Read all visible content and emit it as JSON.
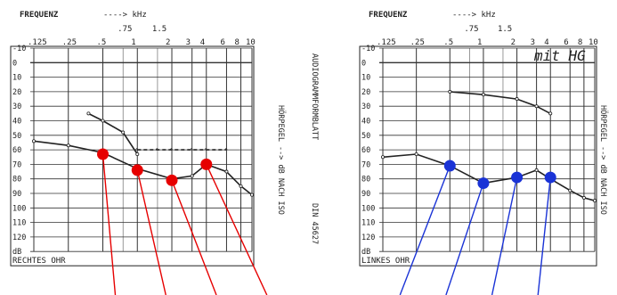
{
  "chart_data": [
    {
      "type": "line",
      "header": "FREQUENZ",
      "unit_arrow": "----> kHz",
      "x_ticks": [
        ".125",
        ".25",
        ".5",
        "1",
        "2",
        "3",
        "4",
        "6",
        "8",
        "10"
      ],
      "x_ticks_upper": [
        ".75",
        "1.5"
      ],
      "y_ticks": [
        "-10",
        "0",
        "10",
        "20",
        "30",
        "40",
        "50",
        "60",
        "70",
        "80",
        "90",
        "100",
        "110",
        "120",
        "dB"
      ],
      "ylim": [
        -10,
        120
      ],
      "ear_label": "RECHTES OHR",
      "right_side_text": [
        "AUDIOGRAMMFORMBLATT",
        "DIN 45627"
      ],
      "series": [
        {
          "x": [
            0.125,
            0.25,
            0.5,
            1,
            2,
            3,
            4,
            6,
            8,
            10
          ],
          "values": [
            54,
            57,
            62,
            73,
            80,
            78,
            70,
            75,
            85,
            91
          ]
        },
        {
          "x": [
            0.375,
            0.5,
            0.75,
            1
          ],
          "values": [
            35,
            40,
            48,
            63
          ]
        },
        {
          "x": [
            1,
            1.5,
            2,
            3,
            4,
            6
          ],
          "values": [
            60,
            60,
            60,
            60,
            60,
            60
          ]
        },
        {
          "x": [
            0.5,
            1,
            2,
            4
          ],
          "values": [
            63,
            74,
            81,
            70
          ]
        }
      ],
      "marker_color": "#e60000",
      "handwriting": "",
      "grid": true
    },
    {
      "type": "line",
      "header": "FREQUENZ",
      "unit_arrow": "----> kHz",
      "x_ticks": [
        ".125",
        ".25",
        ".5",
        "1",
        "2",
        "3",
        "4",
        "6",
        "8",
        "10"
      ],
      "x_ticks_upper": [
        ".75",
        "1.5"
      ],
      "y_ticks": [
        "-10",
        "0",
        "10",
        "20",
        "30",
        "40",
        "50",
        "60",
        "70",
        "80",
        "90",
        "100",
        "110",
        "120",
        "dB"
      ],
      "ylim": [
        -10,
        120
      ],
      "ear_label": "LINKES OHR",
      "right_side_text": [
        "HÖRPEGEL --> dB NACH ISO"
      ],
      "series": [
        {
          "x": [
            0.125,
            0.25,
            0.5,
            1,
            2,
            3,
            4,
            6,
            8,
            10
          ],
          "values": [
            65,
            63,
            71,
            83,
            79,
            74,
            80,
            88,
            93,
            95
          ]
        },
        {
          "x": [
            0.5,
            1,
            2,
            3,
            4
          ],
          "values": [
            20,
            22,
            25,
            30,
            35
          ]
        },
        {
          "x": [
            0.5,
            1,
            2,
            4
          ],
          "values": [
            71,
            83,
            79,
            79
          ]
        }
      ],
      "marker_color": "#1a33d6",
      "handwriting": "mit HG",
      "grid": true
    }
  ],
  "labels": {
    "left_right_text": "HÖRPEGEL --> dB NACH ISO",
    "right_right_text": "HÖRPEGEL --> dB NACH ISO"
  },
  "colors": {
    "red": "#e60000",
    "blue": "#1a33d6",
    "ink": "#222"
  }
}
